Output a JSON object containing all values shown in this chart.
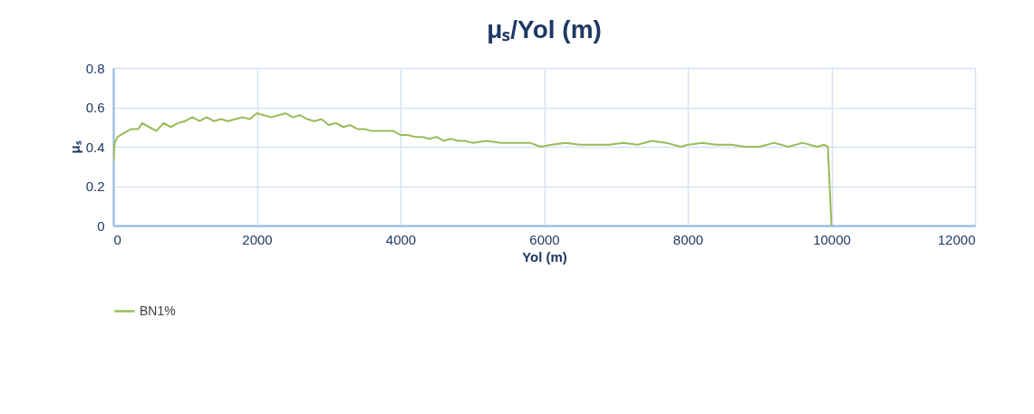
{
  "chart_data": {
    "type": "line",
    "title": "μₛ/Yol (m)",
    "xlabel": "Yol (m)",
    "ylabel": "μₛ",
    "xlim": [
      0,
      12000
    ],
    "xticks": [
      0,
      2000,
      4000,
      6000,
      8000,
      10000,
      12000
    ],
    "ylim": [
      0,
      0.8
    ],
    "yticks": [
      0,
      0.2,
      0.4,
      0.6,
      0.8
    ],
    "grid": true,
    "legend": "bottom",
    "marker": "none",
    "line_style": "solid",
    "series": [
      {
        "name": "BN1%",
        "color": "#9bbb59",
        "x": [
          0,
          20,
          60,
          150,
          250,
          350,
          400,
          500,
          600,
          700,
          800,
          900,
          1000,
          1100,
          1200,
          1300,
          1400,
          1500,
          1600,
          1700,
          1800,
          1900,
          2000,
          2100,
          2200,
          2300,
          2400,
          2500,
          2600,
          2700,
          2800,
          2900,
          3000,
          3100,
          3200,
          3300,
          3400,
          3500,
          3600,
          3700,
          3800,
          3900,
          4000,
          4100,
          4200,
          4300,
          4400,
          4500,
          4600,
          4700,
          4800,
          4900,
          5000,
          5200,
          5400,
          5600,
          5800,
          5950,
          6100,
          6300,
          6500,
          6700,
          6900,
          7100,
          7300,
          7500,
          7700,
          7900,
          8000,
          8200,
          8400,
          8600,
          8800,
          9000,
          9200,
          9400,
          9600,
          9800,
          9900,
          9950,
          10000
        ],
        "values": [
          0.32,
          0.42,
          0.45,
          0.47,
          0.49,
          0.49,
          0.52,
          0.5,
          0.48,
          0.52,
          0.5,
          0.52,
          0.53,
          0.55,
          0.53,
          0.55,
          0.53,
          0.54,
          0.53,
          0.54,
          0.55,
          0.54,
          0.57,
          0.56,
          0.55,
          0.56,
          0.57,
          0.55,
          0.56,
          0.54,
          0.53,
          0.54,
          0.51,
          0.52,
          0.5,
          0.51,
          0.49,
          0.49,
          0.48,
          0.48,
          0.48,
          0.48,
          0.46,
          0.46,
          0.45,
          0.45,
          0.44,
          0.45,
          0.43,
          0.44,
          0.43,
          0.43,
          0.42,
          0.43,
          0.42,
          0.42,
          0.42,
          0.4,
          0.41,
          0.42,
          0.41,
          0.41,
          0.41,
          0.42,
          0.41,
          0.43,
          0.42,
          0.4,
          0.41,
          0.42,
          0.41,
          0.41,
          0.4,
          0.4,
          0.42,
          0.4,
          0.42,
          0.4,
          0.41,
          0.4,
          0
        ]
      }
    ]
  }
}
